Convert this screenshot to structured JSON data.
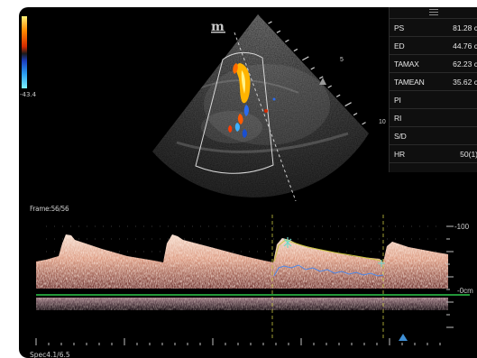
{
  "colorbar": {
    "velocity_scale": "-43.4"
  },
  "probe": {
    "logo": "m"
  },
  "depth_marks": [
    "5",
    "10"
  ],
  "measurements": [
    {
      "key": "PS",
      "value": "81.28 c"
    },
    {
      "key": "ED",
      "value": "44.76 c"
    },
    {
      "key": "TAMAX",
      "value": "62.23 c"
    },
    {
      "key": "TAMEAN",
      "value": "35.62 c"
    },
    {
      "key": "PI",
      "value": ""
    },
    {
      "key": "RI",
      "value": ""
    },
    {
      "key": "S/D",
      "value": ""
    },
    {
      "key": "HR",
      "value": "50(1)"
    }
  ],
  "spectral": {
    "frame": "Frame:56/56",
    "scale_top": "-100",
    "scale_zero": "-0cm",
    "spec_label": "Spec4.1/6.5"
  },
  "colors": {
    "background": "#000000",
    "baseline": "#2ec84a",
    "trace": "#4d88e8",
    "envelope": "#c9c640",
    "cursor": "#6fd9c8",
    "marker": "#3f8fd4"
  }
}
